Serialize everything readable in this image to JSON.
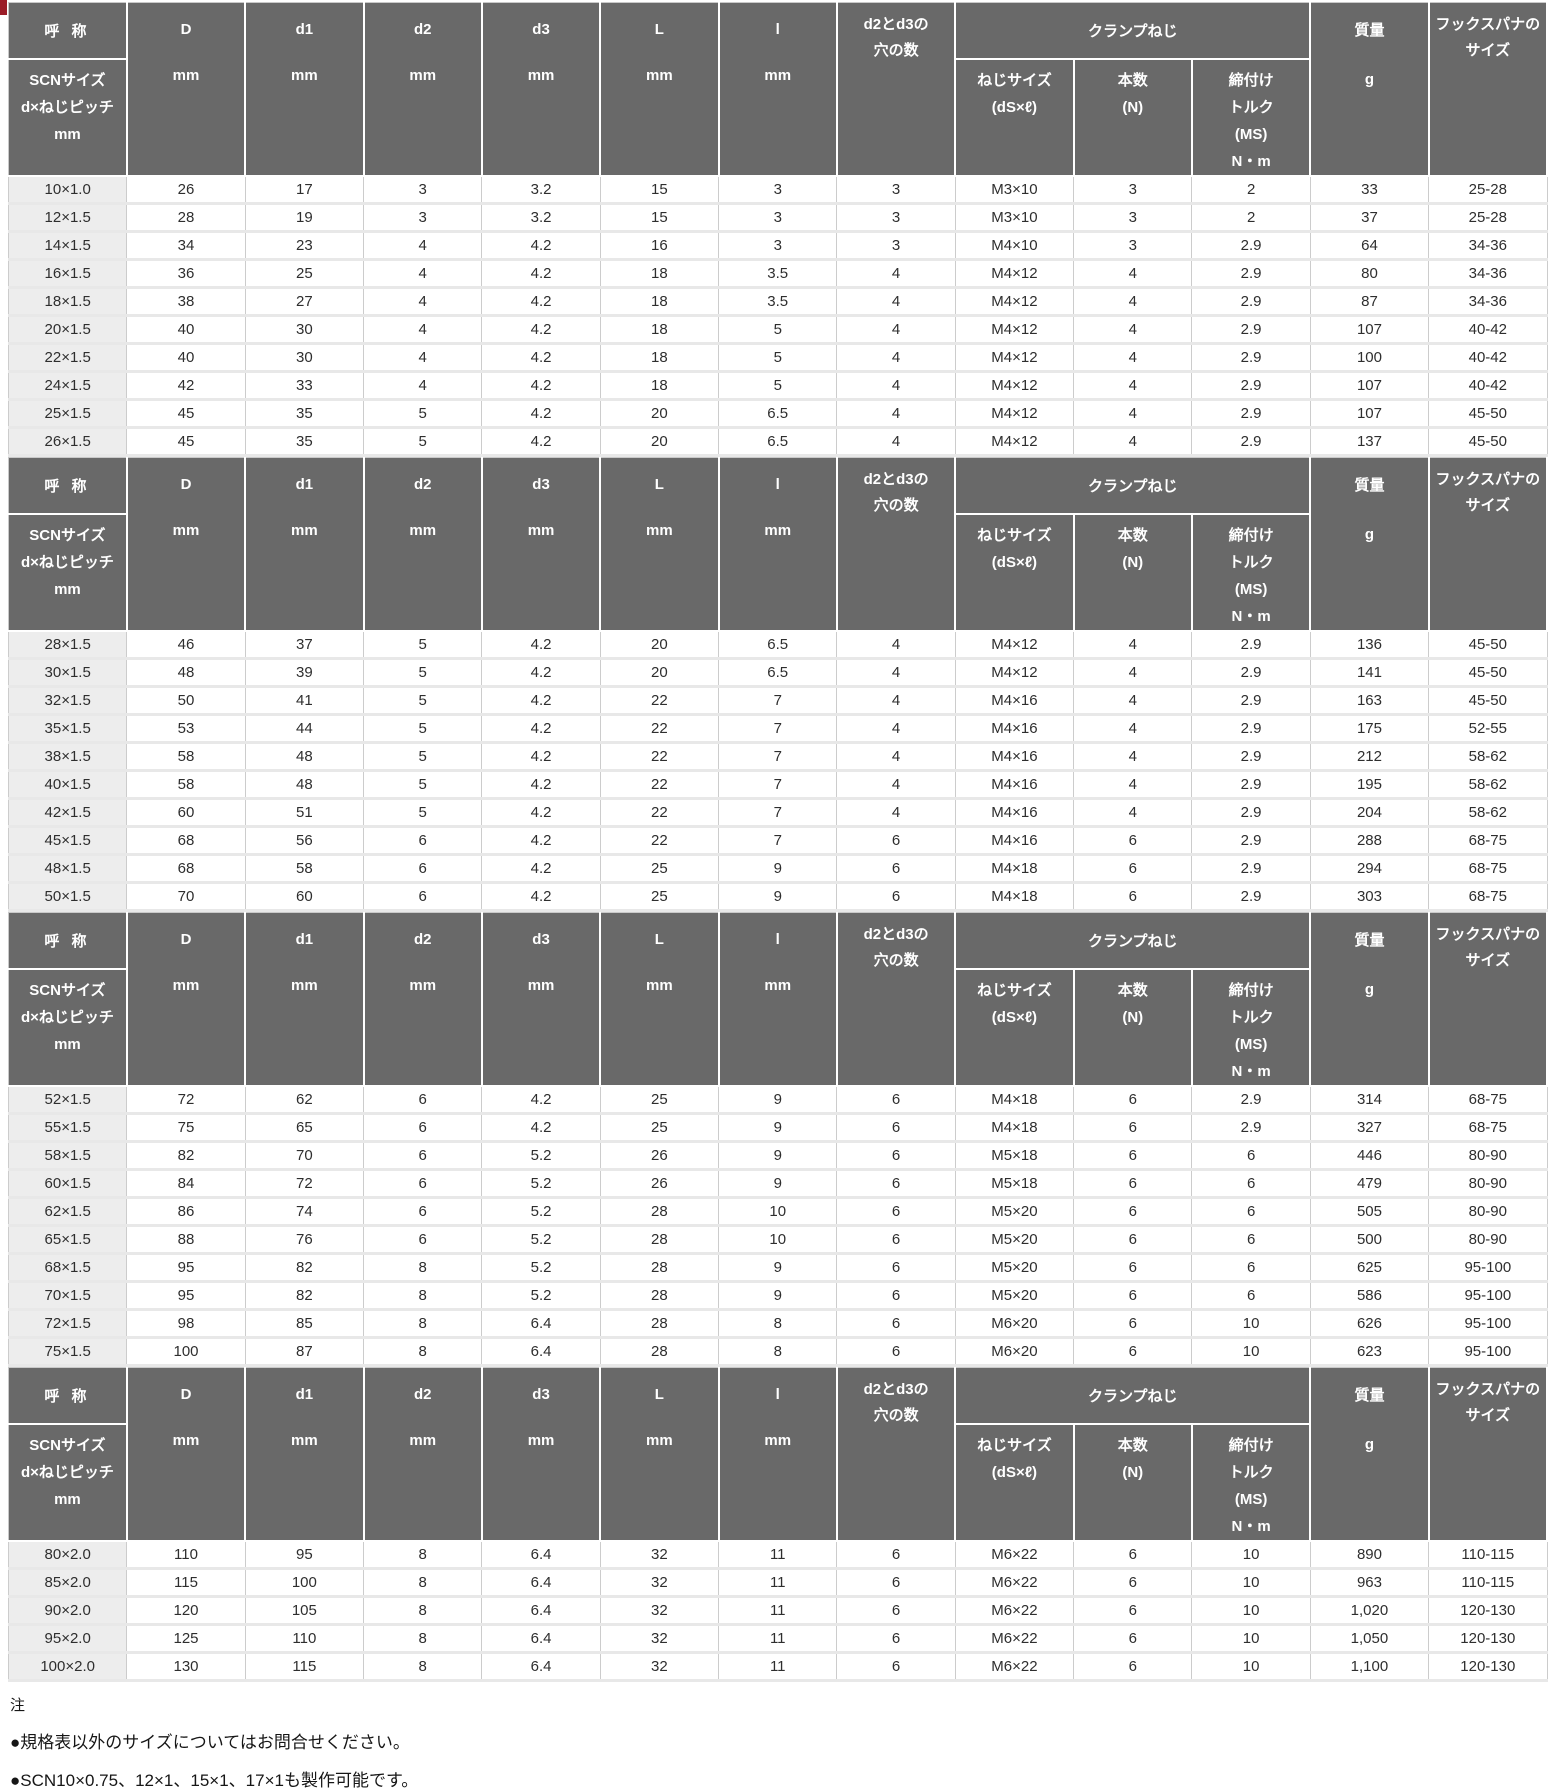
{
  "colors": {
    "header_bg": "#696969",
    "header_text": "#ffffff",
    "row_label_bg": "#ededed",
    "cell_text": "#2e2e2e",
    "accent_red": "#9b1c27"
  },
  "columns": [
    "size",
    "D",
    "d1",
    "d2",
    "d3",
    "L",
    "l",
    "holes",
    "screw-size",
    "screw-count",
    "torque",
    "mass",
    "spanner-size"
  ],
  "header": {
    "name_top": "呼 称",
    "name_sub_lines": [
      "SCNサイズ",
      "d×ねじピッチ",
      "mm"
    ],
    "dim_cols": [
      {
        "key": "D",
        "label": "D",
        "unit": "mm"
      },
      {
        "key": "d1",
        "label": "d1",
        "unit": "mm"
      },
      {
        "key": "d2",
        "label": "d2",
        "unit": "mm"
      },
      {
        "key": "d3",
        "label": "d3",
        "unit": "mm"
      },
      {
        "key": "L",
        "label": "L",
        "unit": "mm"
      },
      {
        "key": "l",
        "label": "l",
        "unit": "mm"
      }
    ],
    "holes_lines": [
      "d2とd3の",
      "穴の数"
    ],
    "clamp_group": "クランプねじ",
    "clamp_cols": [
      {
        "key": "screw-size",
        "lines": [
          "ねじサイズ",
          "(dS×ℓ)"
        ]
      },
      {
        "key": "screw-count",
        "lines": [
          "本数",
          "(N)"
        ]
      },
      {
        "key": "torque",
        "lines": [
          "締付け",
          "トルク",
          "(MS)",
          "N・m"
        ]
      }
    ],
    "mass_label": "質量",
    "mass_unit": "g",
    "spanner_lines": [
      "フックスパナの",
      "サイズ"
    ]
  },
  "sections": [
    {
      "rows": [
        [
          "10×1.0",
          "26",
          "17",
          "3",
          "3.2",
          "15",
          "3",
          "3",
          "M3×10",
          "3",
          "2",
          "33",
          "25-28"
        ],
        [
          "12×1.5",
          "28",
          "19",
          "3",
          "3.2",
          "15",
          "3",
          "3",
          "M3×10",
          "3",
          "2",
          "37",
          "25-28"
        ],
        [
          "14×1.5",
          "34",
          "23",
          "4",
          "4.2",
          "16",
          "3",
          "3",
          "M4×10",
          "3",
          "2.9",
          "64",
          "34-36"
        ],
        [
          "16×1.5",
          "36",
          "25",
          "4",
          "4.2",
          "18",
          "3.5",
          "4",
          "M4×12",
          "4",
          "2.9",
          "80",
          "34-36"
        ],
        [
          "18×1.5",
          "38",
          "27",
          "4",
          "4.2",
          "18",
          "3.5",
          "4",
          "M4×12",
          "4",
          "2.9",
          "87",
          "34-36"
        ],
        [
          "20×1.5",
          "40",
          "30",
          "4",
          "4.2",
          "18",
          "5",
          "4",
          "M4×12",
          "4",
          "2.9",
          "107",
          "40-42"
        ],
        [
          "22×1.5",
          "40",
          "30",
          "4",
          "4.2",
          "18",
          "5",
          "4",
          "M4×12",
          "4",
          "2.9",
          "100",
          "40-42"
        ],
        [
          "24×1.5",
          "42",
          "33",
          "4",
          "4.2",
          "18",
          "5",
          "4",
          "M4×12",
          "4",
          "2.9",
          "107",
          "40-42"
        ],
        [
          "25×1.5",
          "45",
          "35",
          "5",
          "4.2",
          "20",
          "6.5",
          "4",
          "M4×12",
          "4",
          "2.9",
          "107",
          "45-50"
        ],
        [
          "26×1.5",
          "45",
          "35",
          "5",
          "4.2",
          "20",
          "6.5",
          "4",
          "M4×12",
          "4",
          "2.9",
          "137",
          "45-50"
        ]
      ]
    },
    {
      "rows": [
        [
          "28×1.5",
          "46",
          "37",
          "5",
          "4.2",
          "20",
          "6.5",
          "4",
          "M4×12",
          "4",
          "2.9",
          "136",
          "45-50"
        ],
        [
          "30×1.5",
          "48",
          "39",
          "5",
          "4.2",
          "20",
          "6.5",
          "4",
          "M4×12",
          "4",
          "2.9",
          "141",
          "45-50"
        ],
        [
          "32×1.5",
          "50",
          "41",
          "5",
          "4.2",
          "22",
          "7",
          "4",
          "M4×16",
          "4",
          "2.9",
          "163",
          "45-50"
        ],
        [
          "35×1.5",
          "53",
          "44",
          "5",
          "4.2",
          "22",
          "7",
          "4",
          "M4×16",
          "4",
          "2.9",
          "175",
          "52-55"
        ],
        [
          "38×1.5",
          "58",
          "48",
          "5",
          "4.2",
          "22",
          "7",
          "4",
          "M4×16",
          "4",
          "2.9",
          "212",
          "58-62"
        ],
        [
          "40×1.5",
          "58",
          "48",
          "5",
          "4.2",
          "22",
          "7",
          "4",
          "M4×16",
          "4",
          "2.9",
          "195",
          "58-62"
        ],
        [
          "42×1.5",
          "60",
          "51",
          "5",
          "4.2",
          "22",
          "7",
          "4",
          "M4×16",
          "4",
          "2.9",
          "204",
          "58-62"
        ],
        [
          "45×1.5",
          "68",
          "56",
          "6",
          "4.2",
          "22",
          "7",
          "6",
          "M4×16",
          "6",
          "2.9",
          "288",
          "68-75"
        ],
        [
          "48×1.5",
          "68",
          "58",
          "6",
          "4.2",
          "25",
          "9",
          "6",
          "M4×18",
          "6",
          "2.9",
          "294",
          "68-75"
        ],
        [
          "50×1.5",
          "70",
          "60",
          "6",
          "4.2",
          "25",
          "9",
          "6",
          "M4×18",
          "6",
          "2.9",
          "303",
          "68-75"
        ]
      ]
    },
    {
      "rows": [
        [
          "52×1.5",
          "72",
          "62",
          "6",
          "4.2",
          "25",
          "9",
          "6",
          "M4×18",
          "6",
          "2.9",
          "314",
          "68-75"
        ],
        [
          "55×1.5",
          "75",
          "65",
          "6",
          "4.2",
          "25",
          "9",
          "6",
          "M4×18",
          "6",
          "2.9",
          "327",
          "68-75"
        ],
        [
          "58×1.5",
          "82",
          "70",
          "6",
          "5.2",
          "26",
          "9",
          "6",
          "M5×18",
          "6",
          "6",
          "446",
          "80-90"
        ],
        [
          "60×1.5",
          "84",
          "72",
          "6",
          "5.2",
          "26",
          "9",
          "6",
          "M5×18",
          "6",
          "6",
          "479",
          "80-90"
        ],
        [
          "62×1.5",
          "86",
          "74",
          "6",
          "5.2",
          "28",
          "10",
          "6",
          "M5×20",
          "6",
          "6",
          "505",
          "80-90"
        ],
        [
          "65×1.5",
          "88",
          "76",
          "6",
          "5.2",
          "28",
          "10",
          "6",
          "M5×20",
          "6",
          "6",
          "500",
          "80-90"
        ],
        [
          "68×1.5",
          "95",
          "82",
          "8",
          "5.2",
          "28",
          "9",
          "6",
          "M5×20",
          "6",
          "6",
          "625",
          "95-100"
        ],
        [
          "70×1.5",
          "95",
          "82",
          "8",
          "5.2",
          "28",
          "9",
          "6",
          "M5×20",
          "6",
          "6",
          "586",
          "95-100"
        ],
        [
          "72×1.5",
          "98",
          "85",
          "8",
          "6.4",
          "28",
          "8",
          "6",
          "M6×20",
          "6",
          "10",
          "626",
          "95-100"
        ],
        [
          "75×1.5",
          "100",
          "87",
          "8",
          "6.4",
          "28",
          "8",
          "6",
          "M6×20",
          "6",
          "10",
          "623",
          "95-100"
        ]
      ]
    },
    {
      "rows": [
        [
          "80×2.0",
          "110",
          "95",
          "8",
          "6.4",
          "32",
          "11",
          "6",
          "M6×22",
          "6",
          "10",
          "890",
          "110-115"
        ],
        [
          "85×2.0",
          "115",
          "100",
          "8",
          "6.4",
          "32",
          "11",
          "6",
          "M6×22",
          "6",
          "10",
          "963",
          "110-115"
        ],
        [
          "90×2.0",
          "120",
          "105",
          "8",
          "6.4",
          "32",
          "11",
          "6",
          "M6×22",
          "6",
          "10",
          "1,020",
          "120-130"
        ],
        [
          "95×2.0",
          "125",
          "110",
          "8",
          "6.4",
          "32",
          "11",
          "6",
          "M6×22",
          "6",
          "10",
          "1,050",
          "120-130"
        ],
        [
          "100×2.0",
          "130",
          "115",
          "8",
          "6.4",
          "32",
          "11",
          "6",
          "M6×22",
          "6",
          "10",
          "1,100",
          "120-130"
        ]
      ]
    }
  ],
  "notes": {
    "title": "注",
    "items": [
      "●規格表以外のサイズについてはお問合せください。",
      "●SCN10×0.75、12×1、15×1、17×1も製作可能です。"
    ]
  }
}
